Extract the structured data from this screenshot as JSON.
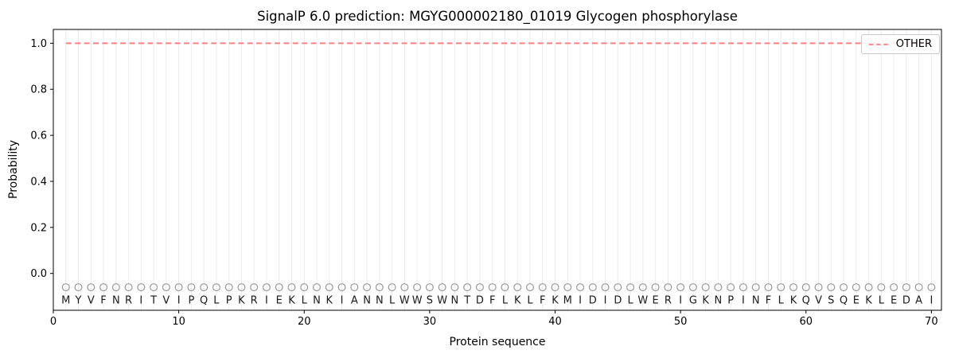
{
  "figure": {
    "title": "SignalP 6.0 prediction: MGYG000002180_01019 Glycogen phosphorylase",
    "xlabel": "Protein sequence",
    "ylabel": "Probability"
  },
  "legend": {
    "label": "OTHER",
    "line_color": "#ff8080",
    "line_style": "dashed",
    "position": "upper-right"
  },
  "chart_data": {
    "type": "line",
    "title": "SignalP 6.0 prediction: MGYG000002180_01019 Glycogen phosphorylase",
    "xlabel": "Protein sequence",
    "ylabel": "Probability",
    "xlim": [
      0,
      70.8
    ],
    "ylim": [
      -0.16,
      1.06
    ],
    "xticks": [
      0,
      10,
      20,
      30,
      40,
      50,
      60,
      70
    ],
    "yticks": [
      0.0,
      0.2,
      0.4,
      0.6,
      0.8,
      1.0
    ],
    "grid": "vertical-line-per-residue",
    "grid_color": "#ececec",
    "legend_position": "upper-right",
    "sequence": "MYVFNRITVIPQLPKRIEKLNKIANNLWWSWNTDFLKLFKMIDIDLWERIGKNPINFLKQVSQEKLEDAI",
    "x_start": 1,
    "n_residues": 70,
    "series": [
      {
        "name": "OTHER",
        "color": "#ff8080",
        "style": "dashed",
        "values": [
          1.0,
          1.0,
          1.0,
          1.0,
          1.0,
          1.0,
          1.0,
          1.0,
          1.0,
          1.0,
          1.0,
          1.0,
          1.0,
          1.0,
          1.0,
          1.0,
          1.0,
          1.0,
          1.0,
          1.0,
          1.0,
          1.0,
          1.0,
          1.0,
          1.0,
          1.0,
          1.0,
          1.0,
          1.0,
          1.0,
          1.0,
          1.0,
          1.0,
          1.0,
          1.0,
          1.0,
          1.0,
          1.0,
          1.0,
          1.0,
          1.0,
          1.0,
          1.0,
          1.0,
          1.0,
          1.0,
          1.0,
          1.0,
          1.0,
          1.0,
          1.0,
          1.0,
          1.0,
          1.0,
          1.0,
          1.0,
          1.0,
          1.0,
          1.0,
          1.0,
          1.0,
          1.0,
          1.0,
          1.0,
          1.0,
          1.0,
          1.0,
          1.0,
          1.0,
          1.0
        ]
      }
    ],
    "residue_markers": {
      "shape": "open-circle",
      "y": -0.06,
      "color": "#999999"
    },
    "residue_letter_y": -0.115,
    "residue_letter_color": "#1a1a1a",
    "axes_color": "#000000"
  }
}
